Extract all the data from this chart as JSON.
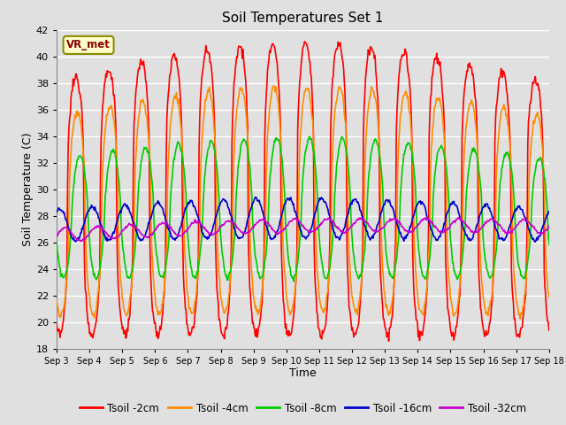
{
  "title": "Soil Temperatures Set 1",
  "xlabel": "Time",
  "ylabel": "Soil Temperature (C)",
  "ylim": [
    18,
    42
  ],
  "yticks": [
    18,
    20,
    22,
    24,
    26,
    28,
    30,
    32,
    34,
    36,
    38,
    40,
    42
  ],
  "x_labels": [
    "Sep 3",
    "Sep 4",
    "Sep 5",
    "Sep 6",
    "Sep 7",
    "Sep 8",
    "Sep 9",
    "Sep 10",
    "Sep 11",
    "Sep 12",
    "Sep 13",
    "Sep 14",
    "Sep 15",
    "Sep 16",
    "Sep 17",
    "Sep 18"
  ],
  "annotation_text": "VR_met",
  "series": {
    "Tsoil -2cm": {
      "color": "#FF0000",
      "lw": 1.2
    },
    "Tsoil -4cm": {
      "color": "#FF8C00",
      "lw": 1.2
    },
    "Tsoil -8cm": {
      "color": "#00CC00",
      "lw": 1.2
    },
    "Tsoil -16cm": {
      "color": "#0000CC",
      "lw": 1.2
    },
    "Tsoil -32cm": {
      "color": "#CC00CC",
      "lw": 1.2
    }
  },
  "background_color": "#E0E0E0",
  "grid_color": "#FFFFFF",
  "n_days": 15,
  "points_per_day": 48,
  "figsize": [
    6.4,
    4.8
  ],
  "dpi": 100
}
